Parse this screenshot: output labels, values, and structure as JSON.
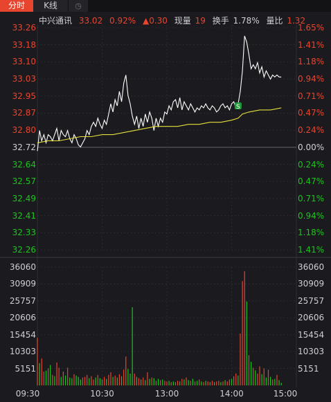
{
  "tabs": {
    "intraday": "分时",
    "kline": "K线"
  },
  "header": {
    "name": "中兴通讯",
    "price": "33.02",
    "change_pct": "0.92%",
    "change_abs": "▲0.30",
    "volume_label": "现量",
    "volume_value": "19",
    "turnover_label": "换手",
    "turnover_value": "1.78%",
    "ratio_label": "量比",
    "ratio_value": "1.32"
  },
  "colors": {
    "up": "#e8452f",
    "down": "#1ec41e",
    "neutral": "#cfcfd4",
    "price_line": "#ffffff",
    "avg_line": "#e6e23a",
    "grid": "#2e2e34",
    "tab_active": "#e8452f"
  },
  "chart_data": [
    {
      "type": "line",
      "name": "price",
      "prev_close": 32.72,
      "y_ticks": [
        "33.26",
        "33.18",
        "33.10",
        "33.03",
        "32.95",
        "32.87",
        "32.80",
        "32.72",
        "32.64",
        "32.57",
        "32.49",
        "32.41",
        "32.33",
        "32.26"
      ],
      "pct_ticks": [
        "1.65%",
        "1.41%",
        "1.18%",
        "0.94%",
        "0.71%",
        "0.47%",
        "0.24%",
        "0.00%",
        "0.24%",
        "0.47%",
        "0.71%",
        "0.94%",
        "1.18%",
        "1.41%"
      ],
      "x_ticks": [
        "09:30",
        "10:30",
        "13:00",
        "14:00",
        "15:00"
      ],
      "ylim": [
        32.18,
        33.26
      ],
      "marker": {
        "label": "S",
        "x_minute": 186,
        "y": 32.88
      },
      "series": [
        {
          "name": "price",
          "x": [
            0,
            2,
            4,
            6,
            8,
            10,
            12,
            14,
            16,
            18,
            20,
            22,
            24,
            26,
            28,
            30,
            32,
            34,
            36,
            38,
            40,
            42,
            44,
            46,
            48,
            50,
            52,
            54,
            56,
            58,
            60,
            62,
            64,
            66,
            68,
            70,
            72,
            74,
            76,
            78,
            80,
            82,
            84,
            86,
            88,
            90,
            92,
            94,
            96,
            98,
            100,
            102,
            104,
            106,
            108,
            110,
            112,
            114,
            116,
            118,
            120,
            122,
            124,
            126,
            128,
            130,
            132,
            134,
            136,
            138,
            140,
            142,
            144,
            146,
            148,
            150,
            152,
            154,
            156,
            158,
            160,
            162,
            164,
            166,
            168,
            170,
            172,
            174,
            176,
            178,
            180,
            182,
            184,
            186,
            188,
            190,
            192,
            194,
            196,
            198,
            200,
            202,
            204,
            206,
            208,
            210,
            212,
            214,
            216,
            218,
            220,
            222,
            224,
            226
          ],
          "y": [
            32.66,
            32.76,
            32.71,
            32.74,
            32.7,
            32.74,
            32.73,
            32.71,
            32.74,
            32.77,
            32.71,
            32.76,
            32.74,
            32.73,
            32.76,
            32.72,
            32.7,
            32.74,
            32.72,
            32.69,
            32.68,
            32.7,
            32.72,
            32.76,
            32.74,
            32.78,
            32.8,
            32.78,
            32.82,
            32.79,
            32.77,
            32.81,
            32.79,
            32.84,
            32.89,
            32.85,
            32.91,
            32.88,
            32.95,
            32.9,
            32.99,
            33.03,
            32.93,
            32.89,
            32.83,
            32.79,
            32.83,
            32.77,
            32.82,
            32.78,
            32.84,
            32.8,
            32.85,
            32.82,
            32.76,
            32.82,
            32.78,
            32.82,
            32.8,
            32.85,
            32.84,
            32.88,
            32.86,
            32.9,
            32.91,
            32.87,
            32.92,
            32.86,
            32.9,
            32.88,
            32.86,
            32.89,
            32.87,
            32.85,
            32.87,
            32.86,
            32.88,
            32.87,
            32.89,
            32.87,
            32.86,
            32.88,
            32.87,
            32.85,
            32.86,
            32.88,
            32.89,
            32.87,
            32.88,
            32.86,
            32.89,
            32.9,
            32.87,
            32.89,
            32.95,
            33.05,
            33.22,
            33.19,
            33.13,
            33.06,
            33.08,
            33.06,
            33.09,
            33.04,
            33.07,
            33.02,
            33.05,
            33.03,
            33.01,
            33.03,
            33.02,
            33.03,
            33.02,
            33.02
          ]
        },
        {
          "name": "avg",
          "x": [
            0,
            10,
            20,
            30,
            40,
            50,
            60,
            70,
            80,
            90,
            100,
            110,
            120,
            130,
            140,
            150,
            160,
            170,
            180,
            186,
            190,
            196,
            206,
            216,
            226
          ],
          "y": [
            32.7,
            32.71,
            32.71,
            32.72,
            32.73,
            32.73,
            32.74,
            32.74,
            32.75,
            32.76,
            32.77,
            32.78,
            32.78,
            32.78,
            32.79,
            32.79,
            32.8,
            32.8,
            32.81,
            32.82,
            32.84,
            32.85,
            32.86,
            32.86,
            32.87
          ]
        }
      ]
    },
    {
      "type": "bar",
      "name": "volume",
      "y_ticks": [
        "36060",
        "30909",
        "25757",
        "20606",
        "15454",
        "10303",
        "5151"
      ],
      "ylim": [
        0,
        36060
      ],
      "bars": [
        {
          "x": 0,
          "v": 14500,
          "dir": "up"
        },
        {
          "x": 2,
          "v": 6800,
          "dir": "down"
        },
        {
          "x": 4,
          "v": 8200,
          "dir": "up"
        },
        {
          "x": 6,
          "v": 4200,
          "dir": "up"
        },
        {
          "x": 8,
          "v": 4500,
          "dir": "down"
        },
        {
          "x": 10,
          "v": 5200,
          "dir": "up"
        },
        {
          "x": 12,
          "v": 6200,
          "dir": "down"
        },
        {
          "x": 14,
          "v": 3200,
          "dir": "up"
        },
        {
          "x": 16,
          "v": 2800,
          "dir": "down"
        },
        {
          "x": 18,
          "v": 7000,
          "dir": "up"
        },
        {
          "x": 20,
          "v": 5400,
          "dir": "up"
        },
        {
          "x": 22,
          "v": 2600,
          "dir": "down"
        },
        {
          "x": 24,
          "v": 4200,
          "dir": "up"
        },
        {
          "x": 26,
          "v": 3000,
          "dir": "down"
        },
        {
          "x": 28,
          "v": 5400,
          "dir": "up"
        },
        {
          "x": 30,
          "v": 2400,
          "dir": "down"
        },
        {
          "x": 32,
          "v": 2200,
          "dir": "down"
        },
        {
          "x": 34,
          "v": 3400,
          "dir": "up"
        },
        {
          "x": 36,
          "v": 3000,
          "dir": "down"
        },
        {
          "x": 38,
          "v": 2600,
          "dir": "down"
        },
        {
          "x": 40,
          "v": 1800,
          "dir": "down"
        },
        {
          "x": 42,
          "v": 2400,
          "dir": "up"
        },
        {
          "x": 44,
          "v": 2600,
          "dir": "up"
        },
        {
          "x": 46,
          "v": 3200,
          "dir": "up"
        },
        {
          "x": 48,
          "v": 2200,
          "dir": "down"
        },
        {
          "x": 50,
          "v": 2800,
          "dir": "up"
        },
        {
          "x": 52,
          "v": 1800,
          "dir": "up"
        },
        {
          "x": 54,
          "v": 2400,
          "dir": "down"
        },
        {
          "x": 56,
          "v": 3200,
          "dir": "up"
        },
        {
          "x": 58,
          "v": 2200,
          "dir": "down"
        },
        {
          "x": 60,
          "v": 1800,
          "dir": "down"
        },
        {
          "x": 62,
          "v": 2600,
          "dir": "up"
        },
        {
          "x": 64,
          "v": 2000,
          "dir": "down"
        },
        {
          "x": 66,
          "v": 3200,
          "dir": "up"
        },
        {
          "x": 68,
          "v": 4000,
          "dir": "up"
        },
        {
          "x": 70,
          "v": 2600,
          "dir": "down"
        },
        {
          "x": 72,
          "v": 3000,
          "dir": "up"
        },
        {
          "x": 74,
          "v": 2400,
          "dir": "down"
        },
        {
          "x": 76,
          "v": 3400,
          "dir": "up"
        },
        {
          "x": 78,
          "v": 2800,
          "dir": "down"
        },
        {
          "x": 80,
          "v": 4800,
          "dir": "up"
        },
        {
          "x": 82,
          "v": 8800,
          "dir": "up"
        },
        {
          "x": 84,
          "v": 5000,
          "dir": "down"
        },
        {
          "x": 86,
          "v": 3600,
          "dir": "down"
        },
        {
          "x": 88,
          "v": 23800,
          "dir": "down"
        },
        {
          "x": 90,
          "v": 3600,
          "dir": "up"
        },
        {
          "x": 92,
          "v": 2600,
          "dir": "down"
        },
        {
          "x": 94,
          "v": 2200,
          "dir": "up"
        },
        {
          "x": 96,
          "v": 1800,
          "dir": "down"
        },
        {
          "x": 98,
          "v": 2400,
          "dir": "up"
        },
        {
          "x": 100,
          "v": 1600,
          "dir": "down"
        },
        {
          "x": 102,
          "v": 4000,
          "dir": "up"
        },
        {
          "x": 104,
          "v": 2000,
          "dir": "down"
        },
        {
          "x": 106,
          "v": 2400,
          "dir": "up"
        },
        {
          "x": 108,
          "v": 2200,
          "dir": "down"
        },
        {
          "x": 110,
          "v": 1400,
          "dir": "up"
        },
        {
          "x": 112,
          "v": 2000,
          "dir": "down"
        },
        {
          "x": 114,
          "v": 1600,
          "dir": "up"
        },
        {
          "x": 116,
          "v": 1800,
          "dir": "down"
        },
        {
          "x": 118,
          "v": 1400,
          "dir": "up"
        },
        {
          "x": 120,
          "v": 1200,
          "dir": "up"
        },
        {
          "x": 122,
          "v": 1400,
          "dir": "down"
        },
        {
          "x": 124,
          "v": 1000,
          "dir": "up"
        },
        {
          "x": 126,
          "v": 1200,
          "dir": "down"
        },
        {
          "x": 128,
          "v": 1000,
          "dir": "up"
        },
        {
          "x": 130,
          "v": 1400,
          "dir": "up"
        },
        {
          "x": 132,
          "v": 1200,
          "dir": "down"
        },
        {
          "x": 134,
          "v": 2000,
          "dir": "up"
        },
        {
          "x": 136,
          "v": 1800,
          "dir": "down"
        },
        {
          "x": 138,
          "v": 2400,
          "dir": "up"
        },
        {
          "x": 140,
          "v": 1600,
          "dir": "down"
        },
        {
          "x": 142,
          "v": 1400,
          "dir": "up"
        },
        {
          "x": 144,
          "v": 2000,
          "dir": "down"
        },
        {
          "x": 146,
          "v": 1200,
          "dir": "up"
        },
        {
          "x": 148,
          "v": 1400,
          "dir": "down"
        },
        {
          "x": 150,
          "v": 1800,
          "dir": "up"
        },
        {
          "x": 152,
          "v": 1200,
          "dir": "down"
        },
        {
          "x": 154,
          "v": 1000,
          "dir": "up"
        },
        {
          "x": 156,
          "v": 1400,
          "dir": "down"
        },
        {
          "x": 158,
          "v": 1200,
          "dir": "up"
        },
        {
          "x": 160,
          "v": 1000,
          "dir": "down"
        },
        {
          "x": 162,
          "v": 1400,
          "dir": "up"
        },
        {
          "x": 164,
          "v": 1000,
          "dir": "down"
        },
        {
          "x": 166,
          "v": 1200,
          "dir": "up"
        },
        {
          "x": 168,
          "v": 1400,
          "dir": "up"
        },
        {
          "x": 170,
          "v": 1000,
          "dir": "down"
        },
        {
          "x": 172,
          "v": 1200,
          "dir": "up"
        },
        {
          "x": 174,
          "v": 1600,
          "dir": "down"
        },
        {
          "x": 176,
          "v": 1200,
          "dir": "up"
        },
        {
          "x": 178,
          "v": 1800,
          "dir": "up"
        },
        {
          "x": 180,
          "v": 2000,
          "dir": "down"
        },
        {
          "x": 182,
          "v": 2800,
          "dir": "up"
        },
        {
          "x": 184,
          "v": 3600,
          "dir": "up"
        },
        {
          "x": 186,
          "v": 3000,
          "dir": "down"
        },
        {
          "x": 188,
          "v": 15800,
          "dir": "up"
        },
        {
          "x": 190,
          "v": 31800,
          "dir": "up"
        },
        {
          "x": 192,
          "v": 34800,
          "dir": "up"
        },
        {
          "x": 194,
          "v": 25600,
          "dir": "down"
        },
        {
          "x": 196,
          "v": 9200,
          "dir": "up"
        },
        {
          "x": 198,
          "v": 7200,
          "dir": "down"
        },
        {
          "x": 200,
          "v": 5400,
          "dir": "up"
        },
        {
          "x": 202,
          "v": 4600,
          "dir": "down"
        },
        {
          "x": 204,
          "v": 3600,
          "dir": "up"
        },
        {
          "x": 206,
          "v": 5800,
          "dir": "up"
        },
        {
          "x": 208,
          "v": 3400,
          "dir": "down"
        },
        {
          "x": 210,
          "v": 5200,
          "dir": "up"
        },
        {
          "x": 212,
          "v": 2400,
          "dir": "down"
        },
        {
          "x": 214,
          "v": 4800,
          "dir": "up"
        },
        {
          "x": 216,
          "v": 2600,
          "dir": "down"
        },
        {
          "x": 218,
          "v": 1800,
          "dir": "up"
        },
        {
          "x": 220,
          "v": 2000,
          "dir": "down"
        },
        {
          "x": 222,
          "v": 3200,
          "dir": "up"
        },
        {
          "x": 224,
          "v": 1600,
          "dir": "down"
        },
        {
          "x": 226,
          "v": 800,
          "dir": "down"
        }
      ]
    }
  ]
}
